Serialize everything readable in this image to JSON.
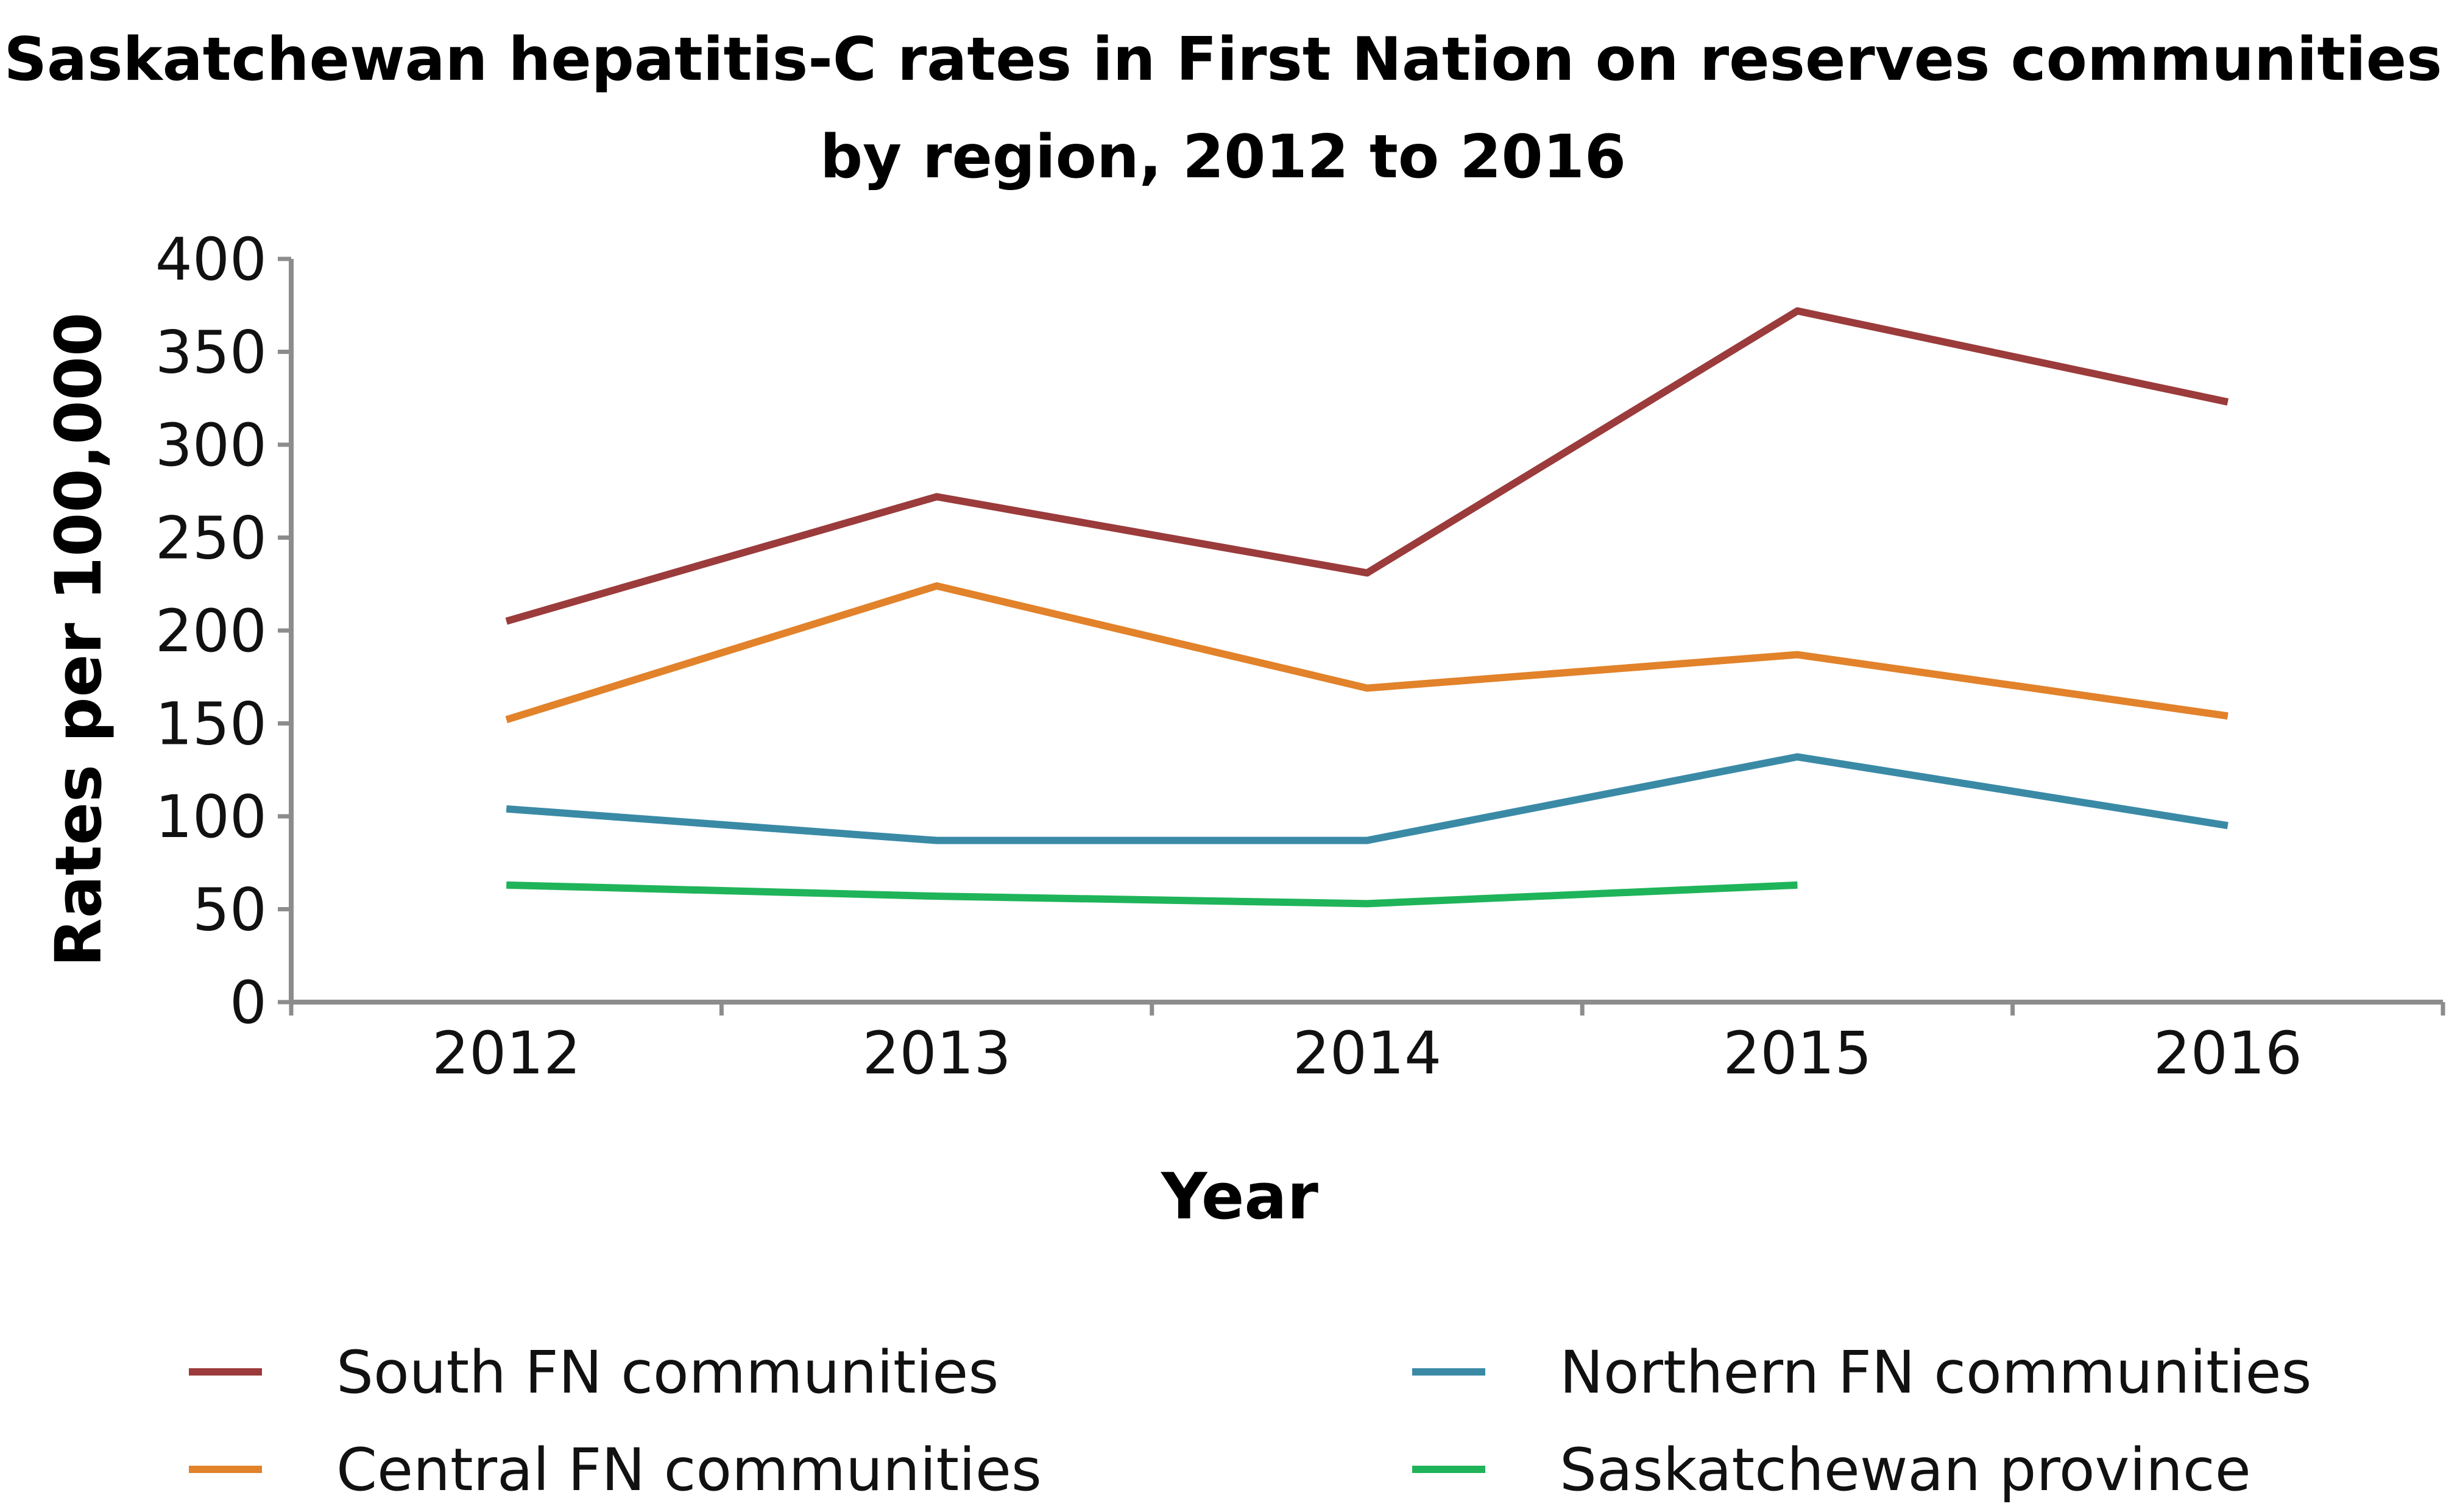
{
  "chart_data": {
    "type": "line",
    "title": "Saskatchewan hepatitis-C rates in First Nation on reserves communities",
    "subtitle": "by region, 2012 to 2016",
    "xlabel": "Year",
    "ylabel": "Rates per 100,000",
    "categories": [
      "2012",
      "2013",
      "2014",
      "2015",
      "2016"
    ],
    "ylim": [
      0,
      400
    ],
    "yticks": [
      0,
      50,
      100,
      150,
      200,
      250,
      300,
      350,
      400
    ],
    "grid": false,
    "legend_position": "bottom",
    "series": [
      {
        "name": "South FN communities",
        "color": "#9b3b3b",
        "values": [
          205,
          272,
          231,
          372,
          323
        ]
      },
      {
        "name": "Central FN communities",
        "color": "#e2822a",
        "values": [
          152,
          224,
          169,
          187,
          154
        ]
      },
      {
        "name": "Northern FN communities",
        "color": "#3a8aa6",
        "values": [
          104,
          87,
          87,
          132,
          95
        ]
      },
      {
        "name": "Saskatchewan province",
        "color": "#1fb45a",
        "values": [
          63,
          57,
          53,
          63,
          null
        ]
      }
    ]
  }
}
